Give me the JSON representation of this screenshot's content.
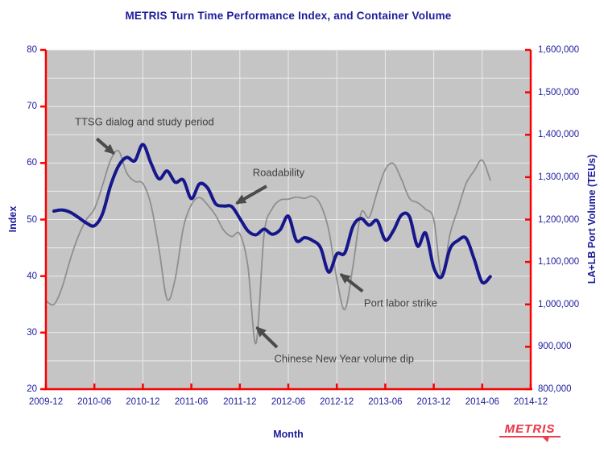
{
  "colors": {
    "navy_text": "#1c1c9c",
    "axis_red": "#fb0000",
    "plot_bg": "#c5c5c5",
    "gridline": "#ebebeb",
    "index_line": "#17178c",
    "volume_line": "#8f8f8f",
    "annotation_text": "#3f3f3f",
    "annotation_arrow": "#4b4b4b",
    "logo_red": "#e8404f"
  },
  "logo": {
    "text": "METRIS"
  },
  "chart_data": {
    "type": "line",
    "title": "METRIS Turn Time Performance Index, and Container Volume",
    "xlabel": "Month",
    "grid": true,
    "legend_position": "none",
    "x_domain": {
      "start": "2009-12",
      "end": "2014-12",
      "total_months": 60,
      "tick_every_months": 6
    },
    "x_tick_labels": [
      "2009-12",
      "2010-06",
      "2010-12",
      "2011-06",
      "2011-12",
      "2012-06",
      "2012-12",
      "2013-06",
      "2013-12",
      "2014-06",
      "2014-12"
    ],
    "left_axis": {
      "label": "Index",
      "min": 20,
      "max": 80,
      "tick_step": 10,
      "grid_step": 5,
      "tick_labels": [
        20,
        30,
        40,
        50,
        60,
        70,
        80
      ]
    },
    "right_axis": {
      "label": "LA+LB Port Volume (TEUs)",
      "min": 800000,
      "max": 1600000,
      "tick_step": 100000,
      "grid_step": 50000,
      "tick_labels": [
        "800,000",
        "900,000",
        "1,000,000",
        "1,100,000",
        "1,200,000",
        "1,300,000",
        "1,400,000",
        "1,500,000",
        "1,600,000"
      ]
    },
    "series": [
      {
        "name": "LA+LB Port Volume (TEUs)",
        "axis": "right",
        "color_key": "volume_line",
        "stroke_width": 1.8,
        "x_start": "2009-12",
        "x_step": "1 month",
        "start_month_offset": 0,
        "values": [
          1008000,
          1000000,
          1040000,
          1105000,
          1160000,
          1200000,
          1225000,
          1280000,
          1340000,
          1362000,
          1310000,
          1290000,
          1285000,
          1235000,
          1130000,
          1012000,
          1060000,
          1180000,
          1235000,
          1252000,
          1235000,
          1210000,
          1175000,
          1160000,
          1166000,
          1090000,
          908000,
          1165000,
          1225000,
          1246000,
          1248000,
          1253000,
          1250000,
          1255000,
          1235000,
          1175000,
          1060000,
          988000,
          1090000,
          1215000,
          1205000,
          1265000,
          1318000,
          1332000,
          1295000,
          1250000,
          1240000,
          1224000,
          1200000,
          1065000,
          1165000,
          1225000,
          1285000,
          1315000,
          1340000,
          1293000
        ]
      },
      {
        "name": "Index",
        "axis": "left",
        "color_key": "index_line",
        "stroke_width": 4,
        "x_start": "2010-01",
        "x_step": "1 month",
        "start_month_offset": 1,
        "values": [
          51.5,
          51.7,
          51.3,
          50.4,
          49.4,
          48.9,
          51.0,
          56.0,
          59.5,
          61.0,
          60.4,
          63.3,
          60.0,
          57.2,
          58.6,
          56.6,
          57.0,
          53.7,
          56.3,
          55.6,
          52.8,
          52.4,
          52.3,
          50.2,
          48.0,
          47.3,
          48.3,
          47.4,
          48.2,
          50.6,
          46.3,
          46.8,
          46.3,
          45.0,
          40.7,
          43.9,
          44.1,
          48.8,
          50.2,
          49.0,
          49.8,
          46.4,
          48.0,
          50.8,
          50.5,
          45.3,
          47.6,
          41.5,
          39.9,
          44.8,
          46.3,
          46.7,
          43.0,
          38.9,
          39.9
        ]
      }
    ],
    "annotations": [
      {
        "text": "TTSG dialog and study period",
        "text_at": {
          "month": 12.2,
          "index": 67.3
        },
        "arrow": {
          "from": {
            "month": 6.3,
            "index": 64.3
          },
          "to": {
            "month": 8.4,
            "index": 61.7
          }
        }
      },
      {
        "text": "Roadability",
        "text_at": {
          "month": 28.8,
          "index": 58.4
        },
        "arrow": {
          "from": {
            "month": 27.3,
            "index": 55.9
          },
          "to": {
            "month": 23.6,
            "index": 52.9
          }
        }
      },
      {
        "text": "Port labor strike",
        "text_at": {
          "month": 43.9,
          "index": 35.2
        },
        "arrow": {
          "from": {
            "month": 39.2,
            "index": 37.3
          },
          "to": {
            "month": 36.5,
            "index": 40.3
          }
        }
      },
      {
        "text": "Chinese New Year volume dip",
        "text_at": {
          "month": 36.9,
          "index": 25.4
        },
        "arrow": {
          "from": {
            "month": 28.6,
            "index": 27.4
          },
          "to": {
            "month": 26.1,
            "index": 30.9
          }
        }
      }
    ]
  }
}
